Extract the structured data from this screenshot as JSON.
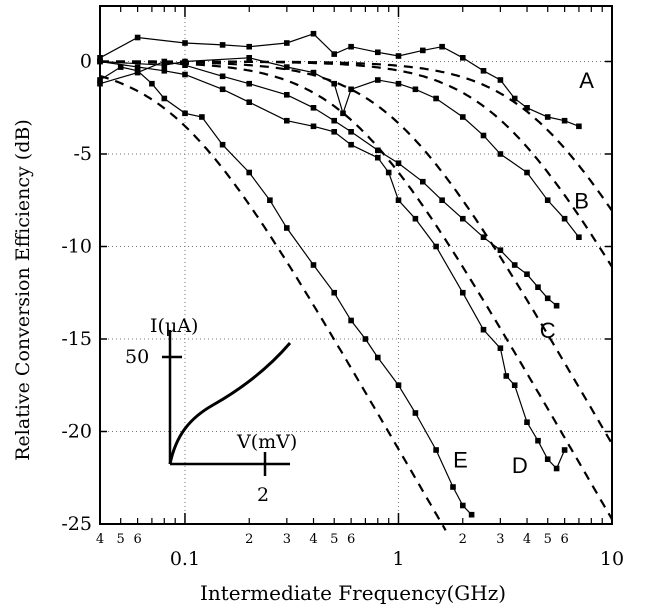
{
  "chart_data": {
    "type": "line",
    "title": "",
    "xlabel": "Intermediate Frequency(GHz)",
    "ylabel": "Relative Conversion Efficiency (dB)",
    "xscale": "log",
    "xlim": [
      0.04,
      10
    ],
    "ylim": [
      -25,
      3
    ],
    "grid": "dotted",
    "y_ticks": [
      "0",
      "-5",
      "-10",
      "-15",
      "-20",
      "-25"
    ],
    "x_major_ticks": [
      "0.1",
      "1",
      "10"
    ],
    "x_minor_ticks": [
      "4",
      "5",
      "6",
      "2",
      "3",
      "4",
      "5",
      "6",
      "2",
      "3",
      "4",
      "5",
      "6"
    ],
    "series": [
      {
        "label": "A",
        "x": [
          0.04,
          0.06,
          0.1,
          0.15,
          0.2,
          0.3,
          0.4,
          0.5,
          0.6,
          0.8,
          1.0,
          1.3,
          1.6,
          2.0,
          2.5,
          3.0,
          3.5,
          4.0,
          5.0,
          6.0,
          7.0
        ],
        "y": [
          0.2,
          1.3,
          1.0,
          0.9,
          0.8,
          1.0,
          1.5,
          0.4,
          0.8,
          0.5,
          0.3,
          0.6,
          0.8,
          0.2,
          -0.5,
          -1.0,
          -2.0,
          -2.5,
          -3.0,
          -3.2,
          -3.5
        ]
      },
      {
        "label": "B",
        "x": [
          0.04,
          0.08,
          0.1,
          0.2,
          0.3,
          0.4,
          0.5,
          0.55,
          0.6,
          0.8,
          1.0,
          1.2,
          1.5,
          2.0,
          2.5,
          3.0,
          4.0,
          5.0,
          6.0,
          7.0
        ],
        "y": [
          0.0,
          -0.2,
          0.0,
          0.2,
          -0.3,
          -0.6,
          -1.2,
          -2.8,
          -1.5,
          -1.0,
          -1.2,
          -1.5,
          -2.0,
          -3.0,
          -4.0,
          -5.0,
          -6.0,
          -7.5,
          -8.5,
          -9.5
        ]
      },
      {
        "label": "C",
        "x": [
          0.04,
          0.06,
          0.08,
          0.1,
          0.15,
          0.2,
          0.3,
          0.4,
          0.5,
          0.6,
          0.8,
          1.0,
          1.3,
          1.6,
          2.0,
          2.5,
          3.0,
          3.5,
          4.0,
          4.5,
          5.0,
          5.5
        ],
        "y": [
          -1.2,
          -0.6,
          0.0,
          -0.2,
          -0.8,
          -1.2,
          -1.8,
          -2.5,
          -3.2,
          -3.8,
          -4.8,
          -5.5,
          -6.5,
          -7.5,
          -8.5,
          -9.5,
          -10.2,
          -11.0,
          -11.5,
          -12.2,
          -12.8,
          -13.2
        ]
      },
      {
        "label": "D",
        "x": [
          0.04,
          0.06,
          0.08,
          0.1,
          0.15,
          0.2,
          0.3,
          0.4,
          0.5,
          0.6,
          0.8,
          0.9,
          1.0,
          1.2,
          1.5,
          2.0,
          2.5,
          3.0,
          3.2,
          3.5,
          4.0,
          4.5,
          5.0,
          5.5,
          6.0
        ],
        "y": [
          0.0,
          -0.3,
          -0.5,
          -0.7,
          -1.5,
          -2.2,
          -3.2,
          -3.5,
          -3.8,
          -4.5,
          -5.2,
          -6.0,
          -7.5,
          -8.5,
          -10.0,
          -12.5,
          -14.5,
          -15.5,
          -17.0,
          -17.5,
          -19.5,
          -20.5,
          -21.5,
          -22.0,
          -21.0
        ]
      },
      {
        "label": "E",
        "x": [
          0.04,
          0.05,
          0.06,
          0.07,
          0.08,
          0.1,
          0.12,
          0.15,
          0.2,
          0.25,
          0.3,
          0.4,
          0.5,
          0.6,
          0.7,
          0.8,
          1.0,
          1.2,
          1.5,
          1.8,
          2.0,
          2.2
        ],
        "y": [
          -1.0,
          -0.3,
          -0.5,
          -1.2,
          -2.0,
          -2.8,
          -3.0,
          -4.5,
          -6.0,
          -7.5,
          -9.0,
          -11.0,
          -12.5,
          -14.0,
          -15.0,
          -16.0,
          -17.5,
          -19.0,
          -21.0,
          -23.0,
          -24.0,
          -24.5
        ]
      }
    ],
    "fits": [
      {
        "label": "A",
        "fc": 4.3
      },
      {
        "label": "B",
        "fc": 2.9
      },
      {
        "label": "C",
        "fc": 0.93
      },
      {
        "label": "D",
        "fc": 0.58
      },
      {
        "label": "E",
        "fc": 0.09
      }
    ],
    "inset": {
      "ylabel": "I(μA)",
      "xlabel": "V(mV)",
      "y_tick": "50",
      "x_tick": "2"
    }
  }
}
